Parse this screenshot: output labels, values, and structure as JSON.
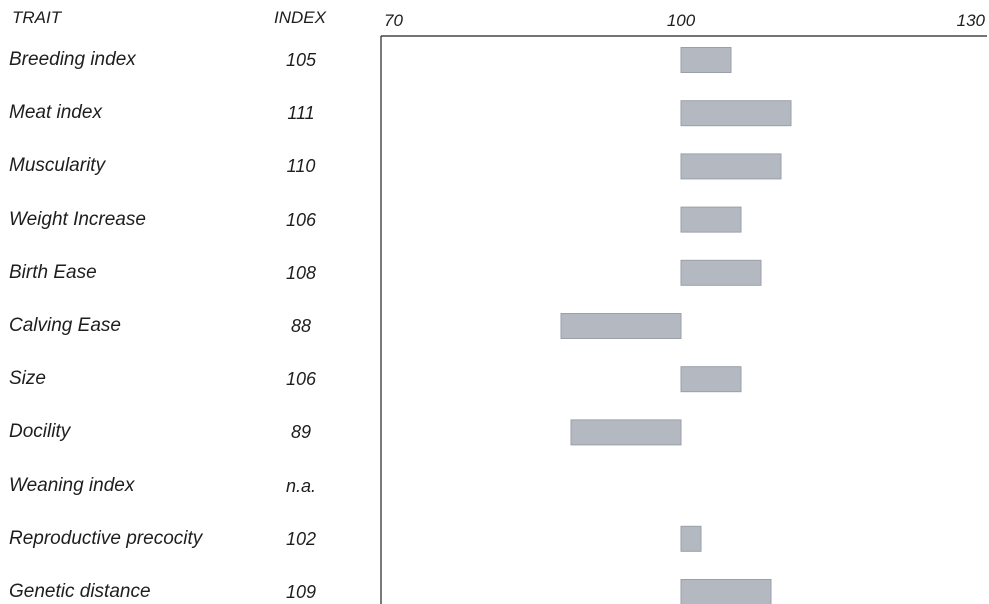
{
  "chart_data": {
    "type": "bar",
    "orientation": "horizontal",
    "headers": {
      "trait": "TRAIT",
      "index": "INDEX"
    },
    "xlim": [
      70,
      130
    ],
    "baseline": 100,
    "xticks": [
      "70",
      "100",
      "130"
    ],
    "bar_color": "#b4b9c1",
    "bar_edge_color": "#9aa0aa",
    "categories": [
      "Breeding index",
      "Meat index",
      "Muscularity",
      "Weight Increase",
      "Birth Ease",
      "Calving Ease",
      "Size",
      "Docility",
      "Weaning index",
      "Reproductive precocity",
      "Genetic distance"
    ],
    "index_labels": [
      "105",
      "111",
      "110",
      "106",
      "108",
      "88",
      "106",
      "89",
      "n.a.",
      "102",
      "109"
    ],
    "values": [
      105,
      111,
      110,
      106,
      108,
      88,
      106,
      89,
      null,
      102,
      109
    ]
  }
}
